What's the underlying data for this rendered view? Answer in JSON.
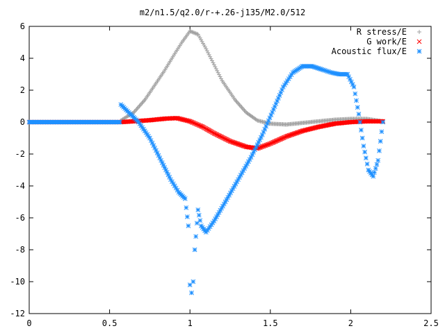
{
  "chart_data": {
    "type": "scatter",
    "title": "m2/n1.5/q2.0/r-+.26-j135/M2.0/512",
    "xlabel": "",
    "ylabel": "",
    "xlim": [
      0,
      2.5
    ],
    "ylim": [
      -12,
      6
    ],
    "x_ticks": [
      "0",
      "0.5",
      "1",
      "1.5",
      "2",
      "2.5"
    ],
    "y_ticks": [
      "6",
      "4",
      "2",
      "0",
      "-2",
      "-4",
      "-6",
      "-8",
      "-10",
      "-12"
    ],
    "grid": false,
    "legend_position": "top-right",
    "series": [
      {
        "name": "R stress/E",
        "color": "#a0a0a0",
        "marker": "plus",
        "x": [
          0.57,
          0.65,
          0.72,
          0.78,
          0.84,
          0.9,
          0.95,
          1.0,
          1.05,
          1.1,
          1.15,
          1.2,
          1.28,
          1.35,
          1.42,
          1.5,
          1.6,
          1.7,
          1.8,
          1.9,
          2.0,
          2.1,
          2.2
        ],
        "y": [
          0.1,
          0.6,
          1.4,
          2.3,
          3.2,
          4.2,
          5.0,
          5.7,
          5.5,
          4.6,
          3.6,
          2.6,
          1.4,
          0.6,
          0.1,
          -0.1,
          -0.15,
          -0.05,
          0.05,
          0.15,
          0.2,
          0.2,
          0.05
        ]
      },
      {
        "name": "G work/E",
        "color": "#ff0000",
        "marker": "cross",
        "x": [
          0.57,
          0.65,
          0.75,
          0.85,
          0.92,
          1.0,
          1.08,
          1.15,
          1.25,
          1.35,
          1.42,
          1.5,
          1.6,
          1.7,
          1.8,
          1.9,
          2.0,
          2.1,
          2.2
        ],
        "y": [
          0.0,
          0.05,
          0.12,
          0.22,
          0.25,
          0.05,
          -0.3,
          -0.7,
          -1.2,
          -1.55,
          -1.65,
          -1.35,
          -0.9,
          -0.55,
          -0.3,
          -0.1,
          0.0,
          0.05,
          0.05
        ]
      },
      {
        "name": "Acoustic flux/E",
        "color": "#1e90ff",
        "marker": "star",
        "x": [
          0.57,
          0.62,
          0.68,
          0.75,
          0.82,
          0.88,
          0.93,
          0.97,
          0.99,
          1.0,
          1.01,
          1.02,
          1.03,
          1.05,
          1.07,
          1.1,
          1.15,
          1.22,
          1.3,
          1.38,
          1.45,
          1.52,
          1.58,
          1.64,
          1.7,
          1.76,
          1.82,
          1.88,
          1.93,
          1.98,
          2.02,
          2.05,
          2.08,
          2.11,
          2.14,
          2.17,
          2.2
        ],
        "y": [
          1.1,
          0.6,
          0.0,
          -1.0,
          -2.4,
          -3.6,
          -4.4,
          -4.8,
          -6.5,
          -10.2,
          -10.7,
          -10.0,
          -8.0,
          -5.5,
          -6.5,
          -6.9,
          -6.2,
          -5.0,
          -3.6,
          -2.2,
          -0.8,
          0.8,
          2.2,
          3.1,
          3.5,
          3.5,
          3.3,
          3.1,
          3.0,
          3.0,
          2.2,
          0.5,
          -1.5,
          -3.0,
          -3.4,
          -2.4,
          0.0
        ]
      }
    ]
  }
}
